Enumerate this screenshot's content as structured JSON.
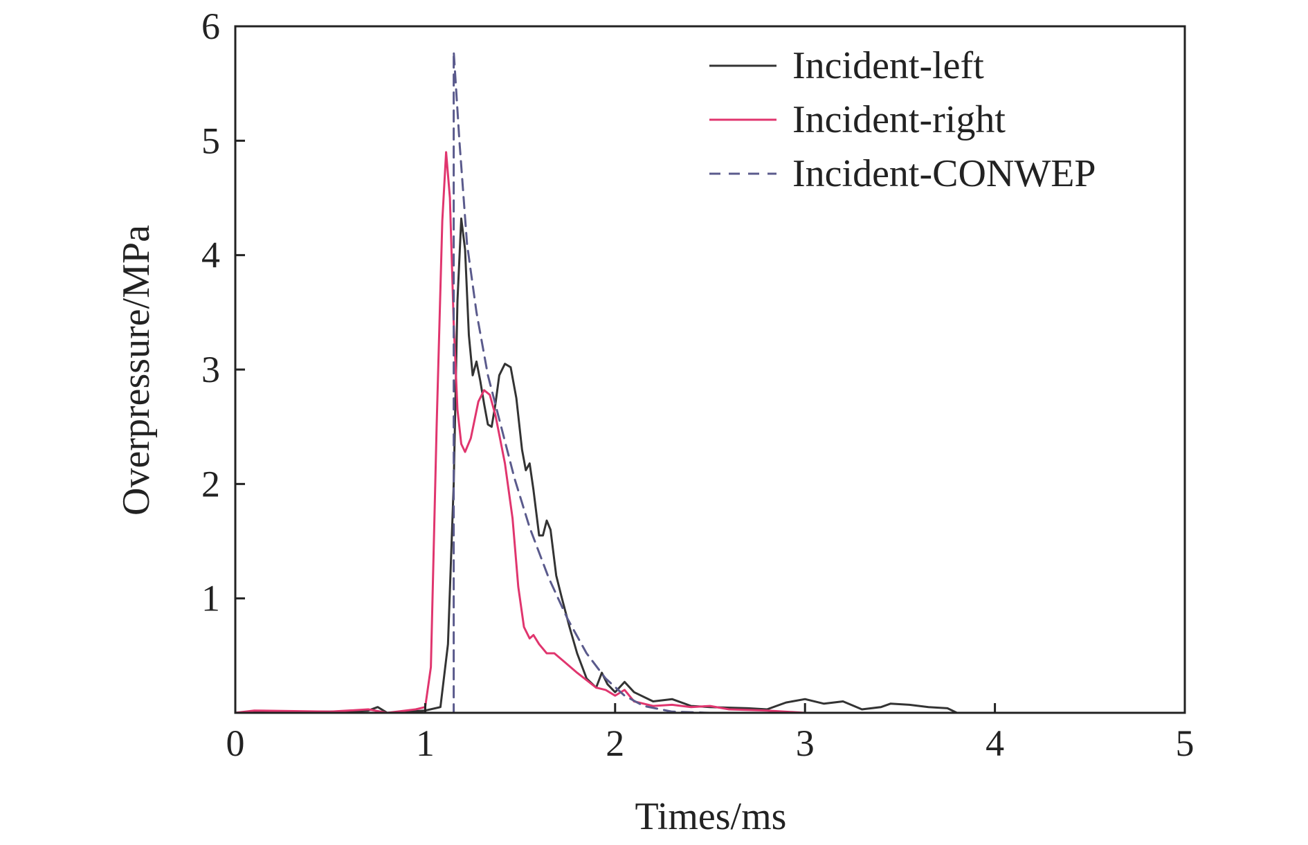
{
  "chart_data": {
    "type": "line",
    "title": "",
    "xlabel": "Times/ms",
    "ylabel": "Overpressure/MPa",
    "xlim": [
      0,
      5
    ],
    "ylim": [
      0,
      6
    ],
    "xticks": [
      "0",
      "1",
      "2",
      "3",
      "4",
      "5"
    ],
    "yticks": [
      "1",
      "2",
      "3",
      "4",
      "5",
      "6"
    ],
    "grid": false,
    "legend_position": "top-right",
    "series": [
      {
        "name": "Incident-left",
        "color": "#333333",
        "style": "solid",
        "points": [
          [
            0,
            0
          ],
          [
            0.2,
            0.01
          ],
          [
            0.5,
            0.01
          ],
          [
            0.7,
            0.02
          ],
          [
            0.75,
            0.05
          ],
          [
            0.8,
            0.0
          ],
          [
            1.0,
            0.02
          ],
          [
            1.08,
            0.05
          ],
          [
            1.12,
            0.6
          ],
          [
            1.15,
            2.0
          ],
          [
            1.17,
            3.6
          ],
          [
            1.19,
            4.32
          ],
          [
            1.21,
            4.05
          ],
          [
            1.23,
            3.3
          ],
          [
            1.25,
            2.95
          ],
          [
            1.27,
            3.07
          ],
          [
            1.29,
            2.9
          ],
          [
            1.31,
            2.7
          ],
          [
            1.33,
            2.52
          ],
          [
            1.35,
            2.5
          ],
          [
            1.37,
            2.7
          ],
          [
            1.39,
            2.95
          ],
          [
            1.42,
            3.05
          ],
          [
            1.45,
            3.02
          ],
          [
            1.48,
            2.75
          ],
          [
            1.51,
            2.3
          ],
          [
            1.53,
            2.12
          ],
          [
            1.55,
            2.18
          ],
          [
            1.57,
            1.95
          ],
          [
            1.6,
            1.55
          ],
          [
            1.62,
            1.55
          ],
          [
            1.64,
            1.68
          ],
          [
            1.66,
            1.6
          ],
          [
            1.69,
            1.2
          ],
          [
            1.72,
            1.0
          ],
          [
            1.76,
            0.75
          ],
          [
            1.8,
            0.52
          ],
          [
            1.85,
            0.3
          ],
          [
            1.9,
            0.22
          ],
          [
            1.93,
            0.35
          ],
          [
            1.96,
            0.25
          ],
          [
            2.0,
            0.18
          ],
          [
            2.05,
            0.27
          ],
          [
            2.1,
            0.18
          ],
          [
            2.2,
            0.1
          ],
          [
            2.3,
            0.12
          ],
          [
            2.4,
            0.06
          ],
          [
            2.5,
            0.05
          ],
          [
            2.7,
            0.04
          ],
          [
            2.8,
            0.03
          ],
          [
            2.9,
            0.09
          ],
          [
            3.0,
            0.12
          ],
          [
            3.1,
            0.08
          ],
          [
            3.2,
            0.1
          ],
          [
            3.3,
            0.03
          ],
          [
            3.4,
            0.05
          ],
          [
            3.45,
            0.08
          ],
          [
            3.55,
            0.07
          ],
          [
            3.65,
            0.05
          ],
          [
            3.75,
            0.04
          ],
          [
            3.8,
            0.0
          ],
          [
            4.5,
            0.0
          ],
          [
            5.0,
            0.0
          ]
        ]
      },
      {
        "name": "Incident-right",
        "color": "#e0356e",
        "style": "solid",
        "points": [
          [
            0,
            0
          ],
          [
            0.1,
            0.02
          ],
          [
            0.5,
            0.01
          ],
          [
            0.7,
            0.03
          ],
          [
            0.8,
            0.0
          ],
          [
            0.95,
            0.03
          ],
          [
            1.0,
            0.05
          ],
          [
            1.03,
            0.4
          ],
          [
            1.06,
            2.5
          ],
          [
            1.09,
            4.3
          ],
          [
            1.11,
            4.9
          ],
          [
            1.13,
            4.5
          ],
          [
            1.15,
            3.4
          ],
          [
            1.17,
            2.65
          ],
          [
            1.19,
            2.35
          ],
          [
            1.21,
            2.28
          ],
          [
            1.24,
            2.4
          ],
          [
            1.28,
            2.72
          ],
          [
            1.31,
            2.82
          ],
          [
            1.34,
            2.78
          ],
          [
            1.37,
            2.6
          ],
          [
            1.42,
            2.18
          ],
          [
            1.46,
            1.7
          ],
          [
            1.49,
            1.1
          ],
          [
            1.52,
            0.75
          ],
          [
            1.55,
            0.65
          ],
          [
            1.57,
            0.68
          ],
          [
            1.6,
            0.6
          ],
          [
            1.64,
            0.52
          ],
          [
            1.68,
            0.52
          ],
          [
            1.73,
            0.45
          ],
          [
            1.8,
            0.35
          ],
          [
            1.9,
            0.22
          ],
          [
            1.95,
            0.2
          ],
          [
            2.0,
            0.15
          ],
          [
            2.05,
            0.2
          ],
          [
            2.1,
            0.1
          ],
          [
            2.2,
            0.06
          ],
          [
            2.3,
            0.07
          ],
          [
            2.4,
            0.05
          ],
          [
            2.5,
            0.06
          ],
          [
            2.6,
            0.03
          ],
          [
            2.8,
            0.02
          ],
          [
            3.0,
            0.0
          ],
          [
            5.0,
            0.0
          ]
        ]
      },
      {
        "name": "Incident-CONWEP",
        "color": "#5a5a8c",
        "style": "dashed",
        "points": [
          [
            0,
            0
          ],
          [
            1.15,
            0
          ],
          [
            1.15,
            5.78
          ],
          [
            1.18,
            5.0
          ],
          [
            1.22,
            4.1
          ],
          [
            1.27,
            3.5
          ],
          [
            1.33,
            2.95
          ],
          [
            1.4,
            2.5
          ],
          [
            1.47,
            2.05
          ],
          [
            1.55,
            1.62
          ],
          [
            1.65,
            1.18
          ],
          [
            1.75,
            0.82
          ],
          [
            1.85,
            0.52
          ],
          [
            1.95,
            0.3
          ],
          [
            2.05,
            0.15
          ],
          [
            2.15,
            0.06
          ],
          [
            2.3,
            0.01
          ],
          [
            2.5,
            0.0
          ],
          [
            5.0,
            0.0
          ]
        ]
      }
    ]
  }
}
